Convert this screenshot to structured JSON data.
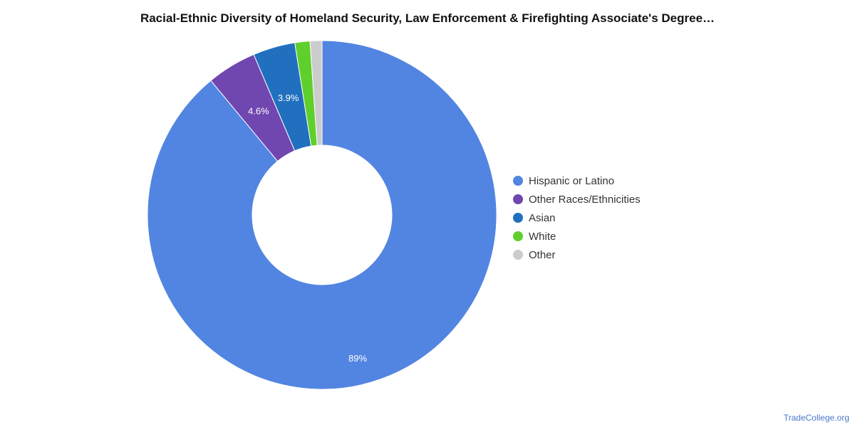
{
  "title": "Racial-Ethnic Diversity of Homeland Security, Law Enforcement & Firefighting Associate's Degree…",
  "footer": "TradeCollege.org",
  "chart_data": {
    "type": "pie",
    "donut": true,
    "legend_position": "right",
    "slices": [
      {
        "label": "Hispanic or Latino",
        "value": 89,
        "display": "89%",
        "color": "#5285e1"
      },
      {
        "label": "Other Races/Ethnicities",
        "value": 4.6,
        "display": "4.6%",
        "color": "#7046b0"
      },
      {
        "label": "Asian",
        "value": 3.9,
        "display": "3.9%",
        "color": "#2070bf"
      },
      {
        "label": "White",
        "value": 1.4,
        "display": "",
        "color": "#5fcf2c"
      },
      {
        "label": "Other",
        "value": 1.1,
        "display": "",
        "color": "#cccccc"
      }
    ]
  }
}
